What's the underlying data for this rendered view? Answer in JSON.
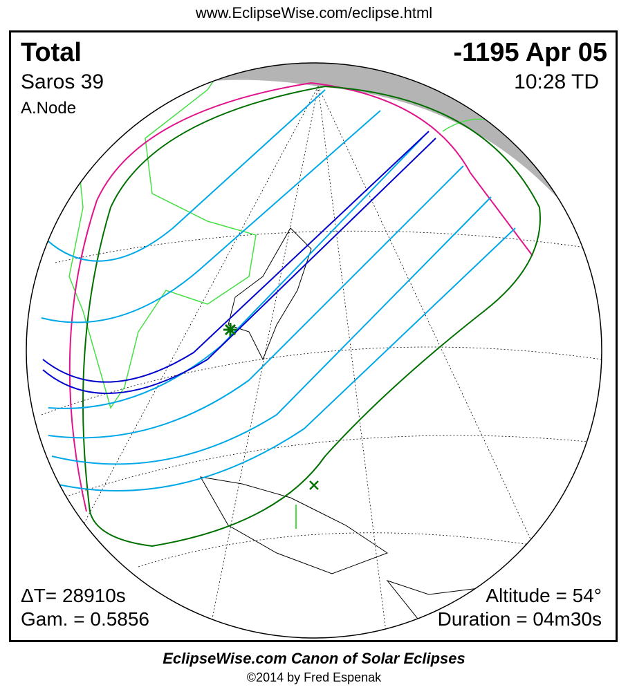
{
  "header": {
    "url": "www.EclipseWise.com/eclipse.html"
  },
  "eclipse": {
    "type": "Total",
    "saros": "Saros  39",
    "node": "A.Node",
    "date": "-1195 Apr 05",
    "time": "10:28 TD",
    "delta_t": "ΔT=  28910s",
    "gamma": "Gam. = 0.5856",
    "altitude": "Altitude = 54°",
    "duration": "Duration = 04m30s"
  },
  "footer": {
    "canon": "EclipseWise.com Canon of Solar Eclipses",
    "copyright": "©2014 by Fred Espenak"
  },
  "colors": {
    "night": "#b4b4b4",
    "central_path": "#0000cc",
    "partial_lines": "#00a8e8",
    "penumbra_limits": "#007000",
    "rise_set": "#e0148c",
    "borders": "#44e044",
    "greatest_eclipse_marker": "#007000"
  },
  "icons": {
    "greatest_eclipse": "star-marker-icon",
    "greatest_duration": "x-marker-icon"
  }
}
